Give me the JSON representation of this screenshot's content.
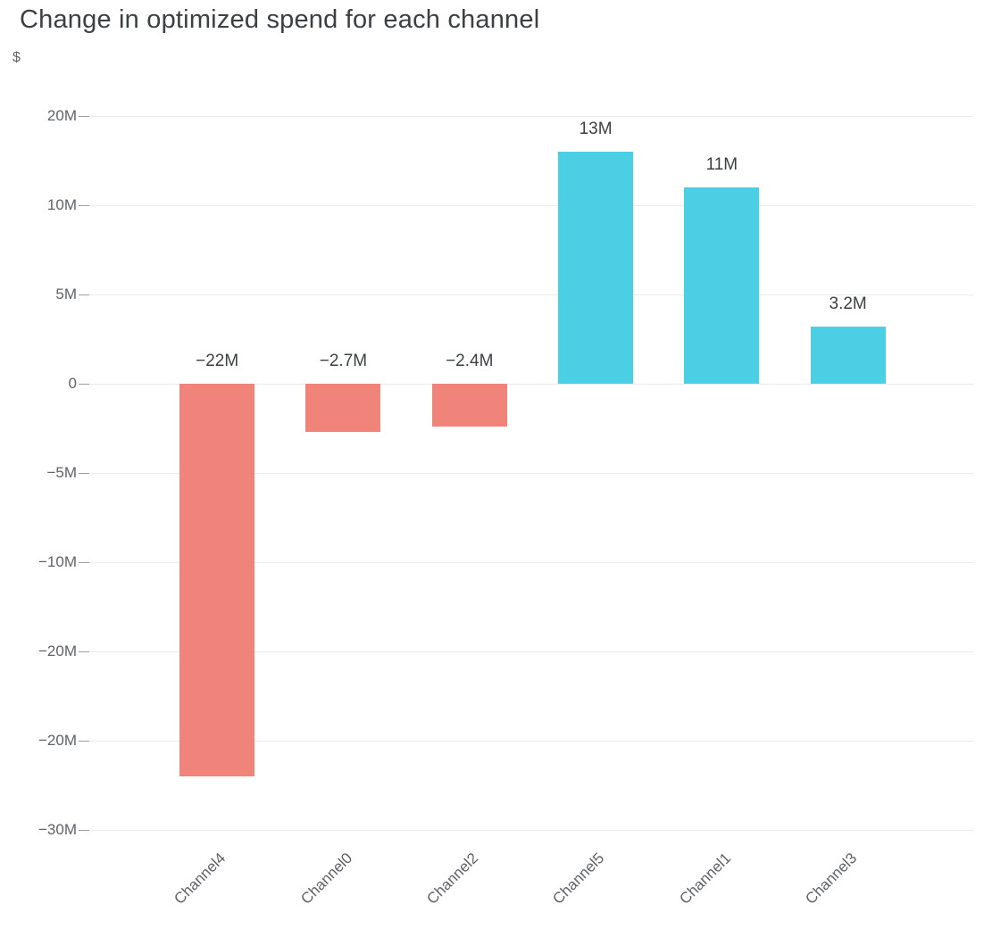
{
  "page": {
    "title": "Change in optimized spend for each channel",
    "unit": "$"
  },
  "chart_data": {
    "type": "bar",
    "title": "Change in optimized spend for each channel",
    "xlabel": "",
    "ylabel": "$",
    "categories": [
      "Channel4",
      "Channel0",
      "Channel2",
      "Channel5",
      "Channel1",
      "Channel3"
    ],
    "values": [
      -22,
      -2.7,
      -2.4,
      13,
      11,
      3.2
    ],
    "value_unit": "M",
    "bar_labels": [
      "−22M",
      "−2.7M",
      "−2.4M",
      "13M",
      "11M",
      "3.2M"
    ],
    "y_ticks": {
      "values": [
        15,
        10,
        5,
        0,
        -5,
        -10,
        -15,
        -20,
        -25
      ],
      "labels": [
        "20M",
        "10M",
        "5M",
        "0",
        "−5M",
        "−10M",
        "−20M",
        "−20M",
        "−30M"
      ]
    },
    "ylim": [
      -27.5,
      15
    ],
    "grid": true,
    "legend_position": "none",
    "colors": {
      "negative_bar": "#f0837a",
      "positive_bar": "#4bcfe4"
    }
  }
}
